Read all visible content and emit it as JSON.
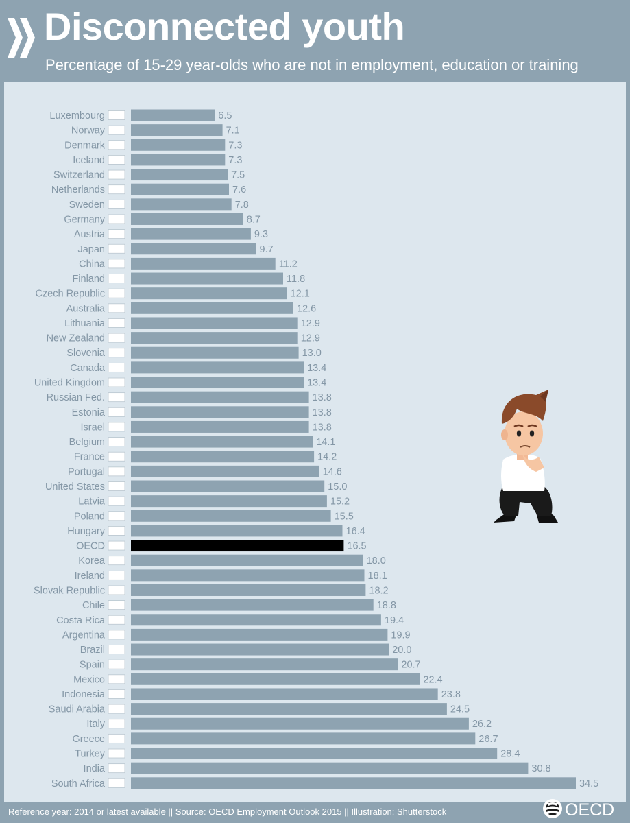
{
  "header": {
    "title": "Disconnected youth",
    "subtitle": "Percentage of 15-29 year-olds who are not in employment, education or training"
  },
  "footer": {
    "source": "Reference year: 2014 or latest available || Source: OECD Employment Outlook 2015 || Illustration: Shutterstock",
    "logo_text": "OECD"
  },
  "colors": {
    "bar": "#8ea3b1",
    "highlight_bar": "#000000",
    "label_text": "#8497a6",
    "panel_background": "#dde7ee"
  },
  "chart_data": {
    "type": "bar",
    "orientation": "horizontal",
    "title": "Disconnected youth",
    "subtitle": "Percentage of 15-29 year-olds who are not in employment, education or training",
    "highlight": "OECD",
    "grid": false,
    "legend": "none",
    "xlim": [
      0,
      34.5
    ],
    "categories": [
      "Luxembourg",
      "Norway",
      "Denmark",
      "Iceland",
      "Switzerland",
      "Netherlands",
      "Sweden",
      "Germany",
      "Austria",
      "Japan",
      "China",
      "Finland",
      "Czech Republic",
      "Australia",
      "Lithuania",
      "New Zealand",
      "Slovenia",
      "Canada",
      "United Kingdom",
      "Russian Fed.",
      "Estonia",
      "Israel",
      "Belgium",
      "France",
      "Portugal",
      "United States",
      "Latvia",
      "Poland",
      "Hungary",
      "OECD",
      "Korea",
      "Ireland",
      "Slovak Republic",
      "Chile",
      "Costa Rica",
      "Argentina",
      "Brazil",
      "Spain",
      "Mexico",
      "Indonesia",
      "Saudi Arabia",
      "Italy",
      "Greece",
      "Turkey",
      "India",
      "South Africa"
    ],
    "values": [
      6.5,
      7.1,
      7.3,
      7.3,
      7.5,
      7.6,
      7.8,
      8.7,
      9.3,
      9.7,
      11.2,
      11.8,
      12.1,
      12.6,
      12.9,
      12.9,
      13.0,
      13.4,
      13.4,
      13.8,
      13.8,
      13.8,
      14.1,
      14.2,
      14.6,
      15.0,
      15.2,
      15.5,
      16.4,
      16.5,
      18.0,
      18.1,
      18.2,
      18.8,
      19.4,
      19.9,
      20.0,
      20.7,
      22.4,
      23.8,
      24.5,
      26.2,
      26.7,
      28.4,
      30.8,
      34.5
    ],
    "value_labels": [
      "6.5",
      "7.1",
      "7.3",
      "7.3",
      "7.5",
      "7.6",
      "7.8",
      "8.7",
      "9.3",
      "9.7",
      "11.2",
      "11.8",
      "12.1",
      "12.6",
      "12.9",
      "12.9",
      "13.0",
      "13.4",
      "13.4",
      "13.8",
      "13.8",
      "13.8",
      "14.1",
      "14.2",
      "14.6",
      "15.0",
      "15.2",
      "15.5",
      "16.4",
      "16.5",
      "18.0",
      "18.1",
      "18.2",
      "18.8",
      "19.4",
      "19.9",
      "20.0",
      "20.7",
      "22.4",
      "23.8",
      "24.5",
      "26.2",
      "26.7",
      "28.4",
      "30.8",
      "34.5"
    ]
  }
}
